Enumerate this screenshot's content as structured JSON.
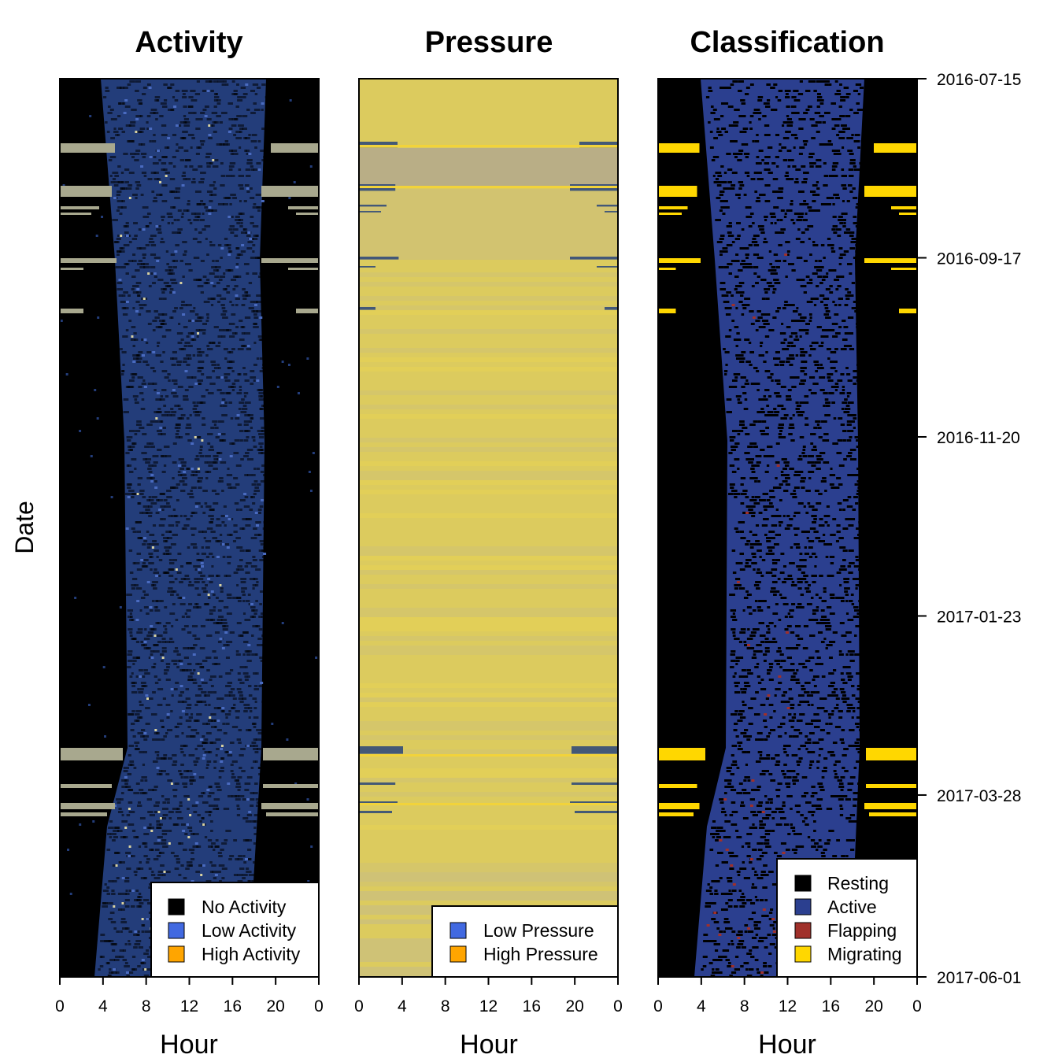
{
  "chart_data": [
    {
      "type": "heatmap",
      "title": "Activity",
      "xlabel": "Hour",
      "ylabel": "Date",
      "x_ticks": [
        "0",
        "4",
        "8",
        "12",
        "16",
        "20",
        "0"
      ],
      "xlim": [
        0,
        24
      ],
      "legend": {
        "position": "bottom-right",
        "entries": [
          {
            "label": "No Activity",
            "color": "#000000"
          },
          {
            "label": "Low Activity",
            "color": "#4169E1"
          },
          {
            "label": "High Activity",
            "color": "#FFA500"
          }
        ]
      }
    },
    {
      "type": "heatmap",
      "title": "Pressure",
      "xlabel": "Hour",
      "x_ticks": [
        "0",
        "4",
        "8",
        "12",
        "16",
        "20",
        "0"
      ],
      "xlim": [
        0,
        24
      ],
      "legend": {
        "position": "bottom-right",
        "entries": [
          {
            "label": "Low Pressure",
            "color": "#4169E1"
          },
          {
            "label": "High Pressure",
            "color": "#FFA500"
          }
        ]
      }
    },
    {
      "type": "heatmap",
      "title": "Classification",
      "xlabel": "Hour",
      "x_ticks": [
        "0",
        "4",
        "8",
        "12",
        "16",
        "20",
        "0"
      ],
      "xlim": [
        0,
        24
      ],
      "legend": {
        "position": "bottom-right",
        "entries": [
          {
            "label": "Resting",
            "color": "#000000"
          },
          {
            "label": "Active",
            "color": "#2B3F8F"
          },
          {
            "label": "Flapping",
            "color": "#A0302A"
          },
          {
            "label": "Migrating",
            "color": "#FFD700"
          }
        ]
      }
    }
  ],
  "date_axis": {
    "labels": [
      "2016-07-15",
      "2016-09-17",
      "2016-11-20",
      "2017-01-23",
      "2017-03-28",
      "2017-06-01"
    ],
    "range": [
      "2016-07-15",
      "2017-06-01"
    ]
  },
  "colors": {
    "activity_day": "#233D7A",
    "activity_night": "#000000",
    "migration_band": "#A8A88E",
    "pressure_base": "#DCCB5E",
    "pressure_band": "#B9AE86",
    "pressure_low": "#1E3C7A",
    "class_active": "#2B3F8F",
    "class_rest": "#000000",
    "class_flap": "#A0302A",
    "class_migrate": "#FFD700"
  }
}
